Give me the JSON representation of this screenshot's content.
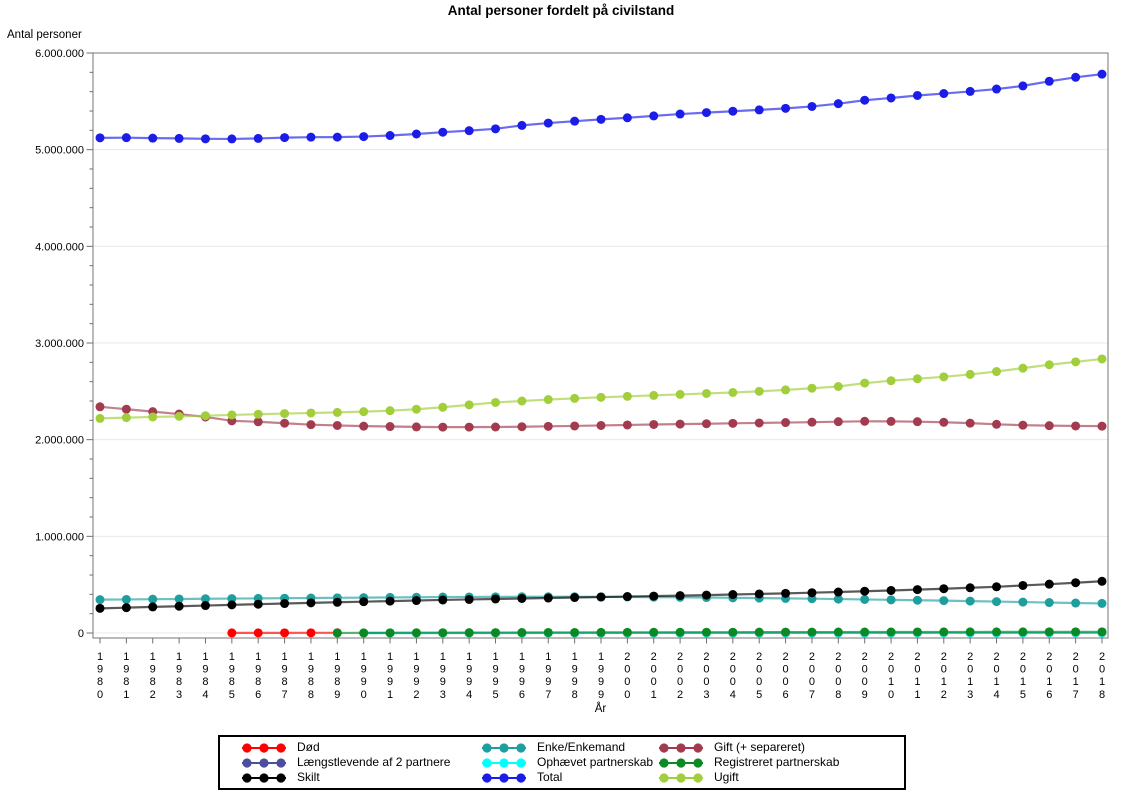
{
  "title": "Antal personer fordelt på civilstand",
  "y_axis": {
    "title": "Antal personer",
    "tick_values": [
      0,
      1000000,
      2000000,
      3000000,
      4000000,
      5000000,
      6000000
    ],
    "tick_labels": [
      "0",
      "1.000.000",
      "2.000.000",
      "3.000.000",
      "4.000.000",
      "5.000.000",
      "6.000.000"
    ],
    "minor_tick_step": 200000
  },
  "x_axis": {
    "title": "År",
    "tick_labels": [
      "1980",
      "1981",
      "1982",
      "1983",
      "1984",
      "1985",
      "1986",
      "1987",
      "1988",
      "1989",
      "1990",
      "1991",
      "1992",
      "1993",
      "1994",
      "1995",
      "1996",
      "1997",
      "1998",
      "1999",
      "2000",
      "2001",
      "2002",
      "2003",
      "2004",
      "2005",
      "2006",
      "2007",
      "2008",
      "2009",
      "2010",
      "2011",
      "2012",
      "2013",
      "2014",
      "2015",
      "2016",
      "2017",
      "2018"
    ]
  },
  "chart_data": {
    "type": "line",
    "title": "Antal personer fordelt på civilstand",
    "xlabel": "År",
    "ylabel": "Antal personer",
    "ylim": [
      0,
      6000000
    ],
    "grid": "horizontal-light",
    "legend_position": "bottom",
    "x": [
      1980,
      1981,
      1982,
      1983,
      1984,
      1985,
      1986,
      1987,
      1988,
      1989,
      1990,
      1991,
      1992,
      1993,
      1994,
      1995,
      1996,
      1997,
      1998,
      1999,
      2000,
      2001,
      2002,
      2003,
      2004,
      2005,
      2006,
      2007,
      2008,
      2009,
      2010,
      2011,
      2012,
      2013,
      2014,
      2015,
      2016,
      2017,
      2018
    ],
    "series": [
      {
        "name": "Død",
        "color": "#FF0000",
        "x": [
          1985,
          1986,
          1987,
          1988,
          1989
        ],
        "values": [
          1000,
          1300,
          1600,
          1900,
          2100
        ]
      },
      {
        "name": "Enke/Enkemand",
        "color": "#1F9E9E",
        "values": [
          345000,
          347000,
          350000,
          352000,
          354000,
          356000,
          358000,
          360000,
          362000,
          364000,
          366000,
          368000,
          370000,
          372000,
          373000,
          374000,
          375000,
          375000,
          375000,
          374000,
          373000,
          371000,
          369000,
          367000,
          364000,
          361000,
          358000,
          355000,
          351000,
          347000,
          343000,
          339000,
          335000,
          330000,
          325000,
          320000,
          315000,
          310000,
          306000
        ]
      },
      {
        "name": "Gift (+ separeret)",
        "color": "#A23B4E",
        "values": [
          2340000,
          2315000,
          2290000,
          2265000,
          2235000,
          2195000,
          2185000,
          2170000,
          2155000,
          2147000,
          2140000,
          2136000,
          2132000,
          2130000,
          2130000,
          2131000,
          2134000,
          2138000,
          2142000,
          2147000,
          2152000,
          2157000,
          2161000,
          2165000,
          2169000,
          2173000,
          2177000,
          2181000,
          2186000,
          2190000,
          2189000,
          2186000,
          2180000,
          2171000,
          2159000,
          2150000,
          2145000,
          2142000,
          2140000
        ]
      },
      {
        "name": "Længstlevende af 2 partnere",
        "color": "#4D4D9C",
        "x": [
          1990,
          1991,
          1992,
          1993,
          1994,
          1995,
          1996,
          1997,
          1998,
          1999,
          2000,
          2001,
          2002,
          2003,
          2004,
          2005,
          2006,
          2007,
          2008,
          2009,
          2010,
          2011,
          2012,
          2013,
          2014,
          2015,
          2016,
          2017,
          2018
        ],
        "values": [
          50,
          100,
          150,
          200,
          260,
          320,
          380,
          440,
          500,
          560,
          620,
          680,
          740,
          800,
          860,
          920,
          980,
          1040,
          1100,
          1160,
          1220,
          1280,
          1340,
          1400,
          1460,
          1520,
          1580,
          1640,
          1700
        ]
      },
      {
        "name": "Ophævet partnerskab",
        "color": "#00FFFF",
        "x": [
          1990,
          1991,
          1992,
          1993,
          1994,
          1995,
          1996,
          1997,
          1998,
          1999,
          2000,
          2001,
          2002,
          2003,
          2004,
          2005,
          2006,
          2007,
          2008,
          2009,
          2010,
          2011,
          2012,
          2013,
          2014,
          2015,
          2016,
          2017,
          2018
        ],
        "values": [
          100,
          200,
          350,
          500,
          700,
          900,
          1100,
          1300,
          1500,
          1700,
          1900,
          2100,
          2300,
          2500,
          2700,
          2900,
          3000,
          3100,
          3200,
          3300,
          3400,
          3500,
          3600,
          3700,
          3800,
          3900,
          4000,
          4100,
          4200
        ]
      },
      {
        "name": "Registreret partnerskab",
        "color": "#0B8A24",
        "x": [
          1989,
          1990,
          1991,
          1992,
          1993,
          1994,
          1995,
          1996,
          1997,
          1998,
          1999,
          2000,
          2001,
          2002,
          2003,
          2004,
          2005,
          2006,
          2007,
          2008,
          2009,
          2010,
          2011,
          2012,
          2013,
          2014,
          2015,
          2016,
          2017,
          2018
        ],
        "values": [
          600,
          1200,
          1800,
          2400,
          3000,
          3600,
          4200,
          4800,
          5300,
          5800,
          6300,
          6800,
          7200,
          7600,
          8000,
          8400,
          8800,
          9200,
          9500,
          9800,
          10100,
          10400,
          10700,
          11000,
          11200,
          11400,
          11600,
          11800,
          12000,
          12100
        ]
      },
      {
        "name": "Skilt",
        "color": "#000000",
        "values": [
          255000,
          262000,
          270000,
          277000,
          284000,
          291000,
          298000,
          305000,
          312000,
          318000,
          324000,
          330000,
          336000,
          342000,
          347000,
          352000,
          357000,
          362000,
          367000,
          372000,
          377000,
          382000,
          387000,
          392000,
          398000,
          404000,
          410000,
          417000,
          424000,
          432000,
          440000,
          449000,
          458000,
          468000,
          478000,
          492000,
          505000,
          520000,
          535000
        ]
      },
      {
        "name": "Total",
        "color": "#1C1CE8",
        "values": [
          5122065,
          5123989,
          5119155,
          5116464,
          5112130,
          5111108,
          5116273,
          5124794,
          5129254,
          5129778,
          5135409,
          5146469,
          5162126,
          5180614,
          5196642,
          5215718,
          5251027,
          5275121,
          5294860,
          5313577,
          5330020,
          5349212,
          5368354,
          5383507,
          5397640,
          5411405,
          5427459,
          5447084,
          5475791,
          5511451,
          5534738,
          5560628,
          5580516,
          5602628,
          5627235,
          5659715,
          5707251,
          5748769,
          5781190
        ]
      },
      {
        "name": "Ugift",
        "color": "#A1CE3A",
        "values": [
          2220000,
          2228000,
          2235000,
          2241000,
          2248000,
          2256000,
          2263000,
          2270000,
          2276000,
          2282000,
          2290000,
          2300000,
          2315000,
          2335000,
          2360000,
          2385000,
          2400000,
          2415000,
          2427000,
          2438000,
          2448000,
          2458000,
          2468000,
          2478000,
          2488000,
          2500000,
          2515000,
          2532000,
          2550000,
          2585000,
          2610000,
          2630000,
          2650000,
          2675000,
          2705000,
          2740000,
          2775000,
          2805000,
          2835000
        ]
      }
    ],
    "draw_order": [
      "Længstlevende af 2 partnere",
      "Ophævet partnerskab",
      "Død",
      "Registreret partnerskab",
      "Enke/Enkemand",
      "Skilt",
      "Gift (+ separeret)",
      "Ugift",
      "Total"
    ]
  }
}
